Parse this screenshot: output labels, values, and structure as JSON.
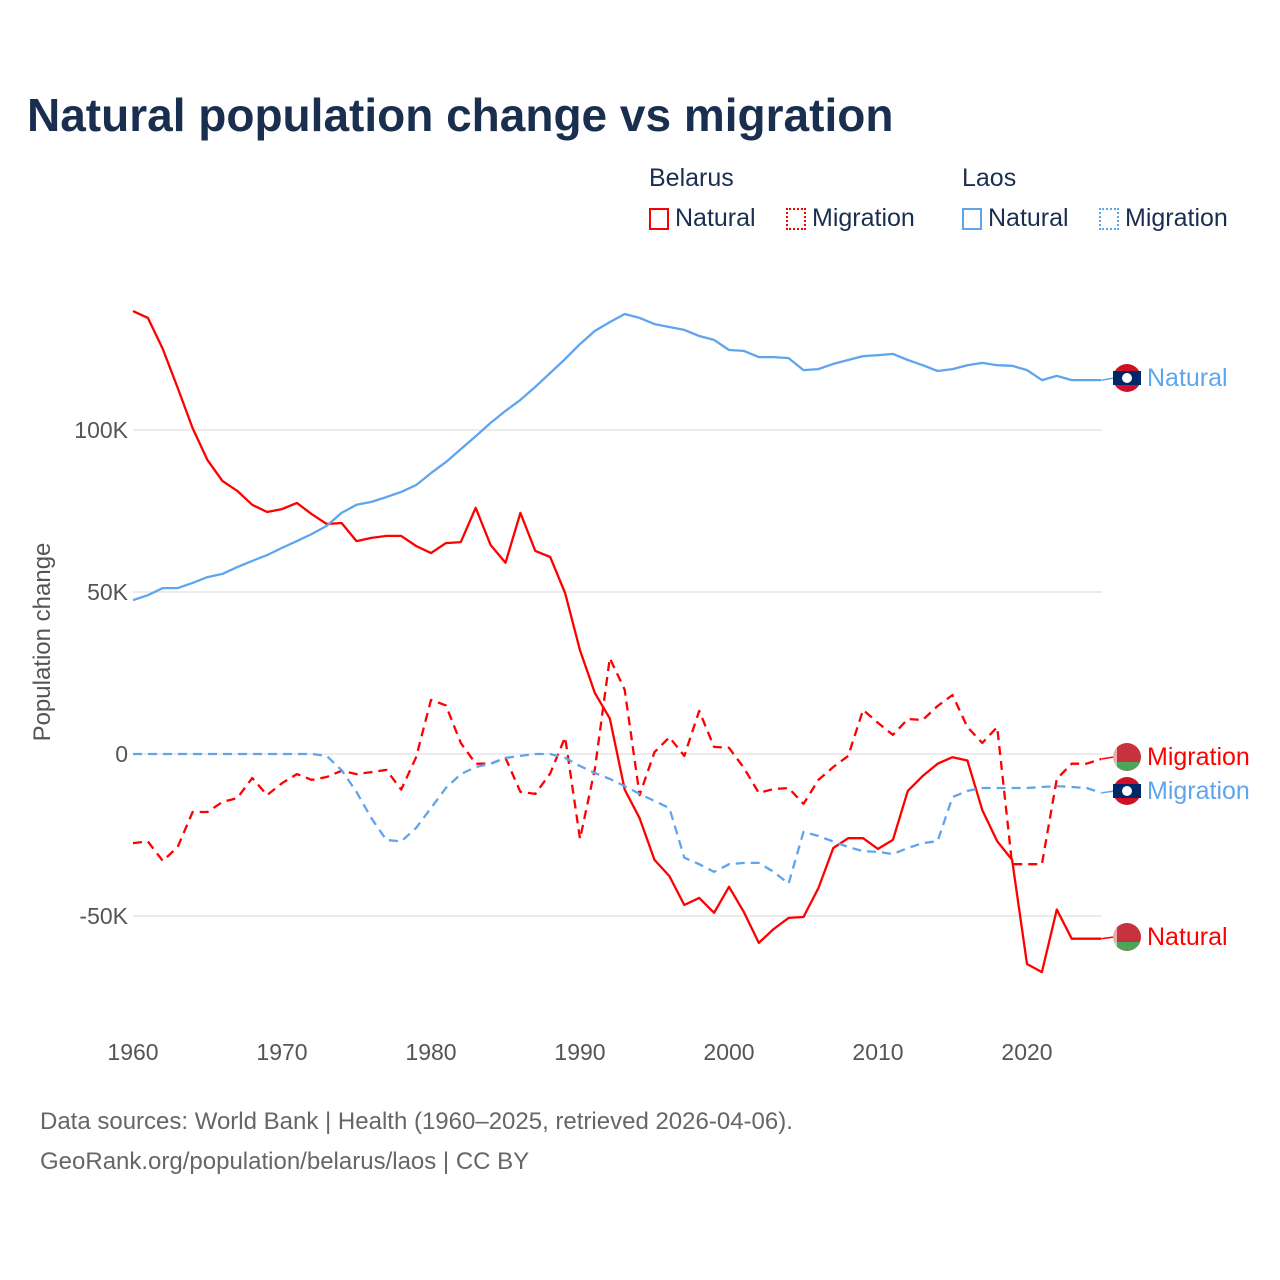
{
  "title": "Natural population change vs migration",
  "legend": {
    "groups": [
      {
        "name": "Belarus",
        "color": "#ff0000",
        "items": [
          "Natural",
          "Migration"
        ]
      },
      {
        "name": "Laos",
        "color": "#5fa5ee",
        "items": [
          "Natural",
          "Migration"
        ]
      }
    ]
  },
  "source_line1": "Data sources: World Bank | Health (1960–2025, retrieved 2026-04-06).",
  "source_line2": "GeoRank.org/population/belarus/laos | CC BY",
  "chart_data": {
    "type": "line",
    "title": "Natural population change vs migration",
    "xlabel": "",
    "ylabel": "Population change",
    "xlim": [
      1960,
      2025
    ],
    "ylim": [
      -75000,
      140000
    ],
    "x_ticks": [
      1960,
      1970,
      1980,
      1990,
      2000,
      2010,
      2020
    ],
    "y_ticks": [
      {
        "v": -50000,
        "label": "-50K"
      },
      {
        "v": 0,
        "label": "0"
      },
      {
        "v": 50000,
        "label": "50K"
      },
      {
        "v": 100000,
        "label": "100K"
      }
    ],
    "grid": true,
    "x_start": 1960,
    "series": [
      {
        "name": "Belarus Natural",
        "end_label": "Natural",
        "color": "#ff0000",
        "dash": false,
        "flag": "belarus",
        "values_k": [
          136.7,
          134.6,
          125,
          113,
          100.6,
          90.7,
          84.3,
          81.2,
          76.9,
          74.7,
          75.6,
          77.5,
          74,
          71,
          71.3,
          65.7,
          66.7,
          67.3,
          67.3,
          64.2,
          62,
          65.1,
          65.4,
          76,
          64.5,
          59,
          74.4,
          62.7,
          60.8,
          49.7,
          32,
          18.8,
          11,
          -11,
          -19.8,
          -32.7,
          -37.7,
          -46.6,
          -44.4,
          -49,
          -41,
          -48.8,
          -58.3,
          -54,
          -50.6,
          -50.3,
          -41.4,
          -29,
          -26,
          -26,
          -29.3,
          -26.5,
          -11.4,
          -6.8,
          -3,
          -1,
          -2,
          -17.3,
          -26.9,
          -32.7,
          -64.8,
          -67.3,
          -48,
          -57,
          -57,
          -57
        ]
      },
      {
        "name": "Belarus Migration",
        "end_label": "Migration",
        "color": "#ff0000",
        "dash": true,
        "flag": "belarus",
        "values_k": [
          -27.5,
          -27,
          -33,
          -28.7,
          -17.9,
          -17.9,
          -14.8,
          -13.6,
          -7.4,
          -12.7,
          -9,
          -6.2,
          -8,
          -7.1,
          -5.2,
          -6.2,
          -5.6,
          -4.9,
          -11,
          -1,
          16.7,
          15,
          3.4,
          -3,
          -3,
          -1.2,
          -11.7,
          -12.3,
          -6,
          5.2,
          -26.2,
          -4.6,
          29.6,
          19.8,
          -12.7,
          0.6,
          5.2,
          -0.6,
          13.3,
          2.2,
          1.9,
          -4.3,
          -12,
          -10.8,
          -10.5,
          -15.4,
          -8,
          -4,
          -0.6,
          13.6,
          9.6,
          5.9,
          10.8,
          10.5,
          14.8,
          18.2,
          8.3,
          3.4,
          8.3,
          -34,
          -34,
          -34,
          -7.7,
          -3,
          -3,
          -1.5
        ]
      },
      {
        "name": "Laos Natural",
        "end_label": "Natural",
        "color": "#5fa5ee",
        "dash": false,
        "flag": "laos",
        "values_k": [
          47.5,
          49,
          51.2,
          51.2,
          52.8,
          54.6,
          55.6,
          57.7,
          59.6,
          61.4,
          63.6,
          65.7,
          67.9,
          70.4,
          74.4,
          76.9,
          77.8,
          79.3,
          80.9,
          83,
          86.7,
          90.1,
          94.1,
          98.1,
          102.2,
          105.9,
          109.3,
          113.3,
          117.6,
          121.9,
          126.5,
          130.6,
          133.3,
          135.8,
          134.6,
          132.7,
          131.8,
          130.9,
          129,
          127.8,
          124.7,
          124.4,
          122.5,
          122.5,
          122.2,
          118.5,
          118.8,
          120.4,
          121.6,
          122.8,
          123.1,
          123.5,
          121.6,
          120,
          118.2,
          118.8,
          120,
          120.7,
          120,
          119.8,
          118.5,
          115.4,
          116.7,
          115.4,
          115.4,
          115.4
        ]
      },
      {
        "name": "Laos Migration",
        "end_label": "Migration",
        "color": "#5fa5ee",
        "dash": true,
        "flag": "laos",
        "values_k": [
          0,
          0,
          0,
          0,
          0,
          0,
          0,
          0,
          0,
          0,
          0,
          0,
          0,
          -0.6,
          -5,
          -11.7,
          -19.8,
          -26.5,
          -27,
          -22.8,
          -16.7,
          -10.5,
          -6.2,
          -4,
          -3,
          -1.2,
          -0.6,
          0,
          0,
          -1.2,
          -3.7,
          -5.9,
          -7.7,
          -9.9,
          -12.3,
          -14.5,
          -16.7,
          -32,
          -34,
          -36.4,
          -34,
          -33.6,
          -33.6,
          -36.4,
          -40,
          -24,
          -25.3,
          -27,
          -28.7,
          -30,
          -30.2,
          -30.9,
          -29,
          -27.5,
          -26.9,
          -13.3,
          -11.4,
          -10.5,
          -10.5,
          -10.5,
          -10.5,
          -10.2,
          -9.9,
          -10.2,
          -10.5,
          -12
        ]
      }
    ]
  }
}
